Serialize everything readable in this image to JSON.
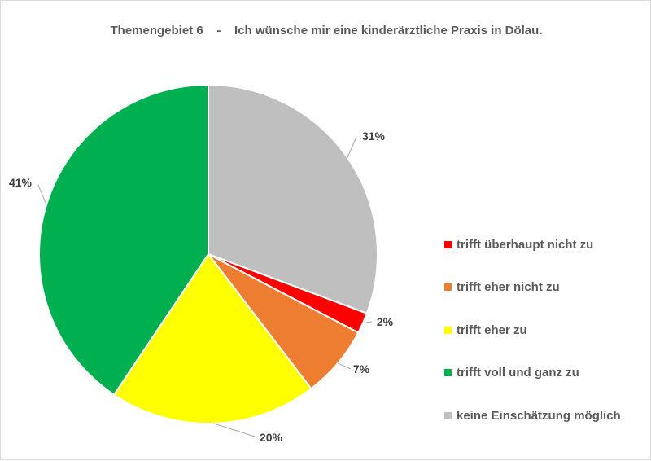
{
  "chart_data": {
    "type": "pie",
    "title": "Themengebiet 6    -    Ich wünsche mir eine kinderärztliche Praxis in Dölau.",
    "start_angle_deg": 0,
    "direction": "clockwise",
    "legend_position": "right",
    "slices": [
      {
        "label": "keine Einschätzung möglich",
        "value": 31,
        "value_label": "31%",
        "color": "#bfbfbf"
      },
      {
        "label": "trifft überhaupt nicht zu",
        "value": 2,
        "value_label": "2%",
        "color": "#ff0000"
      },
      {
        "label": "trifft eher nicht zu",
        "value": 7,
        "value_label": "7%",
        "color": "#ed7d31"
      },
      {
        "label": "trifft eher zu",
        "value": 20,
        "value_label": "20%",
        "color": "#ffff00"
      },
      {
        "label": "trifft voll und ganz zu",
        "value": 41,
        "value_label": "41%",
        "color": "#00b050"
      }
    ],
    "legend": [
      {
        "label": "trifft überhaupt nicht zu",
        "color": "#ff0000"
      },
      {
        "label": "trifft eher nicht zu",
        "color": "#ed7d31"
      },
      {
        "label": "trifft eher zu",
        "color": "#ffff00"
      },
      {
        "label": "trifft voll und ganz zu",
        "color": "#00b050"
      },
      {
        "label": "keine Einschätzung möglich",
        "color": "#bfbfbf"
      }
    ]
  }
}
